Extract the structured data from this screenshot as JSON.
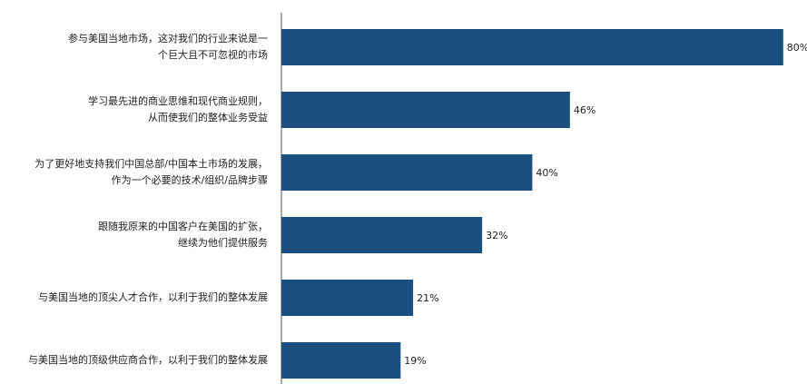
{
  "chart_data": {
    "type": "bar",
    "orientation": "horizontal",
    "categories": [
      "参与美国当地市场，这对我们的行业来说是一\n个巨大且不可忽视的市场",
      "学习最先进的商业思维和现代商业规则，\n从而使我们的整体业务受益",
      "为了更好地支持我们中国总部/中国本土市场的发展，\n作为一个必要的技术/组织/品牌步骤",
      "跟随我原来的中国客户在美国的扩张，\n继续为他们提供服务",
      "与美国当地的顶尖人才合作，以利于我们的整体发展",
      "与美国当地的顶级供应商合作，以利于我们的整体发展"
    ],
    "values": [
      80,
      46,
      40,
      32,
      21,
      19
    ],
    "value_labels": [
      "80%",
      "46%",
      "40%",
      "32%",
      "21%",
      "19%"
    ],
    "color": "#1a4f7f"
  }
}
